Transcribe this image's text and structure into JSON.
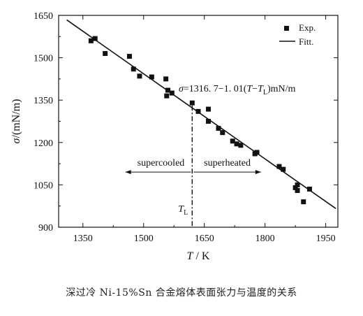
{
  "chart_data": {
    "type": "scatter",
    "x_axis": {
      "label": "T",
      "unit": "K",
      "label_text": "T / K",
      "range": [
        1290,
        1980
      ],
      "ticks": [
        1350,
        1500,
        1650,
        1800,
        1950
      ]
    },
    "y_axis": {
      "label": "σ",
      "unit": "(mN/m)",
      "label_text": "σ/(mN/m)",
      "range": [
        900,
        1650
      ],
      "ticks": [
        900,
        1050,
        1200,
        1350,
        1500,
        1650
      ]
    },
    "legend": {
      "placement": "top-right",
      "items": [
        "Exp.",
        "Fitt."
      ]
    },
    "series": [
      {
        "name": "Exp.",
        "type": "scatter",
        "points": [
          [
            1370,
            1560
          ],
          [
            1380,
            1568
          ],
          [
            1405,
            1515
          ],
          [
            1465,
            1505
          ],
          [
            1475,
            1460
          ],
          [
            1490,
            1435
          ],
          [
            1520,
            1432
          ],
          [
            1555,
            1425
          ],
          [
            1557,
            1365
          ],
          [
            1560,
            1385
          ],
          [
            1570,
            1375
          ],
          [
            1620,
            1340
          ],
          [
            1635,
            1310
          ],
          [
            1660,
            1318
          ],
          [
            1660,
            1275
          ],
          [
            1685,
            1250
          ],
          [
            1695,
            1235
          ],
          [
            1720,
            1205
          ],
          [
            1730,
            1195
          ],
          [
            1740,
            1190
          ],
          [
            1775,
            1160
          ],
          [
            1780,
            1165
          ],
          [
            1835,
            1115
          ],
          [
            1845,
            1105
          ],
          [
            1875,
            1040
          ],
          [
            1880,
            1030
          ],
          [
            1880,
            1050
          ],
          [
            1895,
            990
          ],
          [
            1910,
            1035
          ]
        ]
      },
      {
        "name": "Fitt.",
        "type": "line",
        "points": [
          [
            1310,
            1634
          ],
          [
            1975,
            966
          ]
        ]
      }
    ],
    "annotations": {
      "equation": "σ=1316. 7−1. 01(T−T",
      "equation_sub": "L",
      "equation_tail": ")mN/m",
      "liquidus_T": 1620,
      "liquidus_label": "T",
      "liquidus_sub": "L",
      "supercooled": "supercooled",
      "superheated": "superheated",
      "arrow_y": 1105,
      "arrow_x_left": 1455,
      "arrow_x_right": 1790
    }
  },
  "caption": "深过冷 Ni-15%Sn 合金熔体表面张力与温度的关系"
}
